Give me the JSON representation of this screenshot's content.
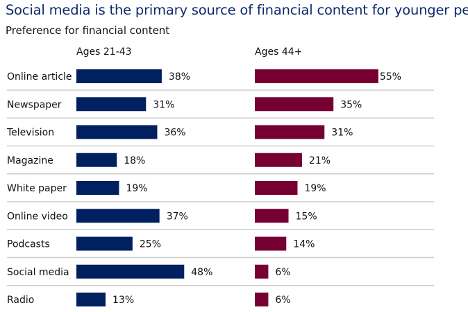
{
  "chart_data": {
    "type": "bar",
    "orientation": "horizontal",
    "title": "Social media is the primary source of financial content for younger people",
    "subtitle": "Preference for financial content",
    "categories": [
      "Online article",
      "Newspaper",
      "Television",
      "Magazine",
      "White paper",
      "Online video",
      "Podcasts",
      "Social media",
      "Radio"
    ],
    "series": [
      {
        "name": "Ages 21-43",
        "color": "#002060",
        "values": [
          38,
          31,
          36,
          18,
          19,
          37,
          25,
          48,
          13
        ]
      },
      {
        "name": "Ages 44+",
        "color": "#770033",
        "values": [
          55,
          35,
          31,
          21,
          19,
          15,
          14,
          6,
          6
        ]
      }
    ],
    "value_format": "%",
    "xlim": [
      0,
      60
    ],
    "grid": false,
    "row_separator_color": "#cccccc"
  }
}
